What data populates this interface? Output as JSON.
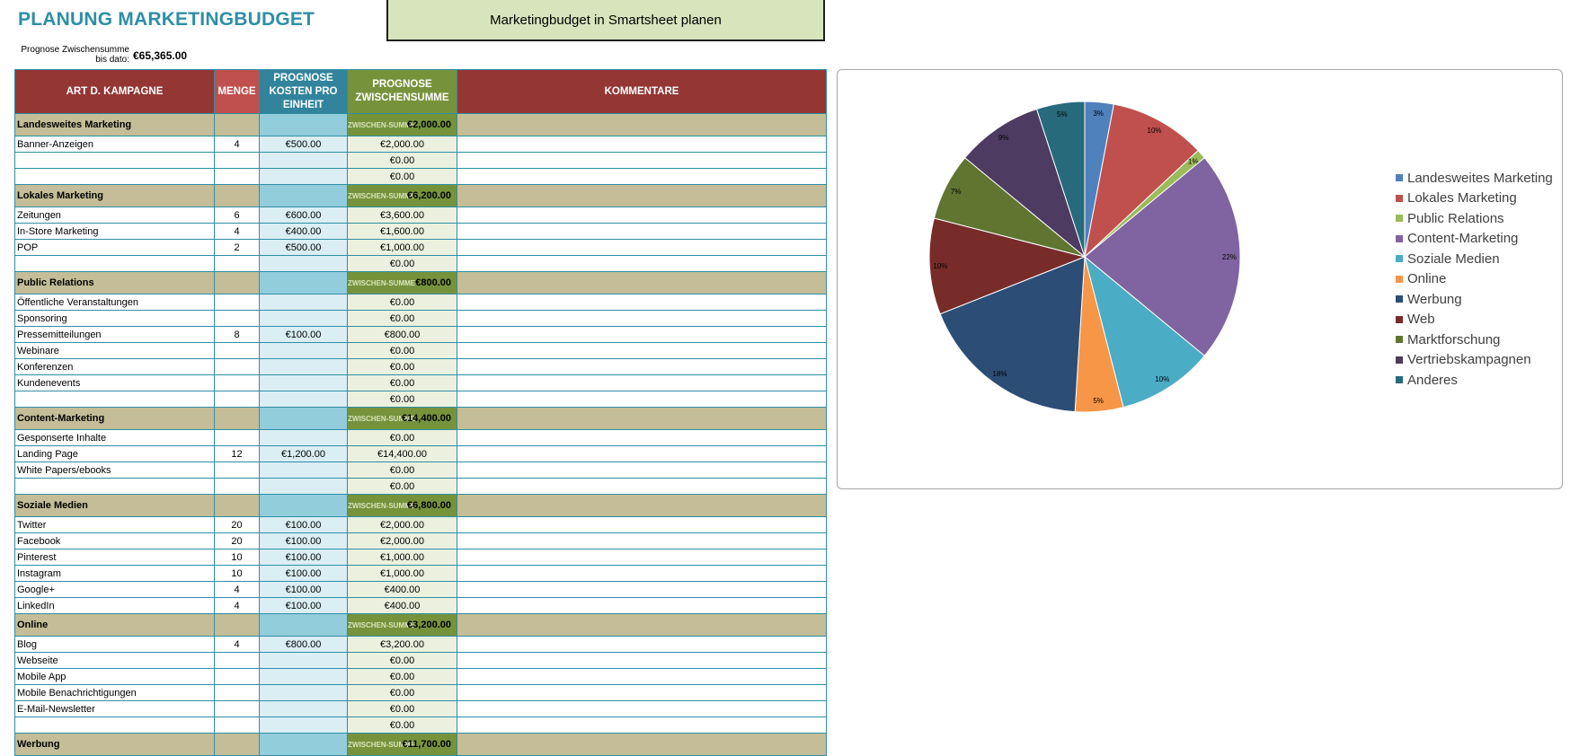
{
  "title": "PLANUNG MARKETINGBUDGET",
  "banner_label": "Marketingbudget in Smartsheet planen",
  "forecast_label": "Prognose Zwischensumme bis dato:",
  "forecast_value": "€65,365.00",
  "columns": {
    "type": "ART D. KAMPAGNE",
    "qty": "MENGE",
    "cost": "PROGNOSE KOSTEN PRO EINHEIT",
    "subtotal": "PROGNOSE ZWISCHENSUMME",
    "comments": "KOMMENTARE"
  },
  "subtotal_label": "ZWISCHEN-SUMME",
  "sections": [
    {
      "name": "Landesweites Marketing",
      "subtotal": "€2,000.00",
      "items": [
        {
          "name": "Banner-Anzeigen",
          "qty": "4",
          "cost": "€500.00",
          "subtotal": "€2,000.00"
        },
        {
          "name": "",
          "qty": "",
          "cost": "",
          "subtotal": "€0.00"
        },
        {
          "name": "",
          "qty": "",
          "cost": "",
          "subtotal": "€0.00"
        }
      ]
    },
    {
      "name": "Lokales Marketing",
      "subtotal": "€6,200.00",
      "items": [
        {
          "name": "Zeitungen",
          "qty": "6",
          "cost": "€600.00",
          "subtotal": "€3,600.00"
        },
        {
          "name": "In-Store Marketing",
          "qty": "4",
          "cost": "€400.00",
          "subtotal": "€1,600.00"
        },
        {
          "name": "POP",
          "qty": "2",
          "cost": "€500.00",
          "subtotal": "€1,000.00"
        },
        {
          "name": "",
          "qty": "",
          "cost": "",
          "subtotal": "€0.00"
        }
      ]
    },
    {
      "name": "Public Relations",
      "subtotal": "€800.00",
      "items": [
        {
          "name": "Öffentliche Veranstaltungen",
          "qty": "",
          "cost": "",
          "subtotal": "€0.00"
        },
        {
          "name": "Sponsoring",
          "qty": "",
          "cost": "",
          "subtotal": "€0.00"
        },
        {
          "name": "Pressemitteilungen",
          "qty": "8",
          "cost": "€100.00",
          "subtotal": "€800.00"
        },
        {
          "name": "Webinare",
          "qty": "",
          "cost": "",
          "subtotal": "€0.00"
        },
        {
          "name": "Konferenzen",
          "qty": "",
          "cost": "",
          "subtotal": "€0.00"
        },
        {
          "name": "Kundenevents",
          "qty": "",
          "cost": "",
          "subtotal": "€0.00"
        },
        {
          "name": "",
          "qty": "",
          "cost": "",
          "subtotal": "€0.00"
        }
      ]
    },
    {
      "name": "Content-Marketing",
      "subtotal": "€14,400.00",
      "items": [
        {
          "name": "Gesponserte Inhalte",
          "qty": "",
          "cost": "",
          "subtotal": "€0.00"
        },
        {
          "name": "Landing Page",
          "qty": "12",
          "cost": "€1,200.00",
          "subtotal": "€14,400.00"
        },
        {
          "name": "White Papers/ebooks",
          "qty": "",
          "cost": "",
          "subtotal": "€0.00"
        },
        {
          "name": "",
          "qty": "",
          "cost": "",
          "subtotal": "€0.00"
        }
      ]
    },
    {
      "name": "Soziale Medien",
      "subtotal": "€6,800.00",
      "items": [
        {
          "name": "Twitter",
          "qty": "20",
          "cost": "€100.00",
          "subtotal": "€2,000.00"
        },
        {
          "name": "Facebook",
          "qty": "20",
          "cost": "€100.00",
          "subtotal": "€2,000.00"
        },
        {
          "name": "Pinterest",
          "qty": "10",
          "cost": "€100.00",
          "subtotal": "€1,000.00"
        },
        {
          "name": "Instagram",
          "qty": "10",
          "cost": "€100.00",
          "subtotal": "€1,000.00"
        },
        {
          "name": "Google+",
          "qty": "4",
          "cost": "€100.00",
          "subtotal": "€400.00"
        },
        {
          "name": "LinkedIn",
          "qty": "4",
          "cost": "€100.00",
          "subtotal": "€400.00"
        }
      ]
    },
    {
      "name": "Online",
      "subtotal": "€3,200.00",
      "items": [
        {
          "name": "Blog",
          "qty": "4",
          "cost": "€800.00",
          "subtotal": "€3,200.00"
        },
        {
          "name": "Webseite",
          "qty": "",
          "cost": "",
          "subtotal": "€0.00"
        },
        {
          "name": "Mobile App",
          "qty": "",
          "cost": "",
          "subtotal": "€0.00"
        },
        {
          "name": "Mobile Benachrichtigungen",
          "qty": "",
          "cost": "",
          "subtotal": "€0.00"
        },
        {
          "name": "E-Mail-Newsletter",
          "qty": "",
          "cost": "",
          "subtotal": "€0.00"
        },
        {
          "name": "",
          "qty": "",
          "cost": "",
          "subtotal": "€0.00"
        }
      ]
    },
    {
      "name": "Werbung",
      "subtotal": "€11,700.00",
      "items": []
    }
  ],
  "chart_data": {
    "type": "pie",
    "categories": [
      "Landesweites Marketing",
      "Lokales Marketing",
      "Public Relations",
      "Content-Marketing",
      "Soziale Medien",
      "Online",
      "Werbung",
      "Web",
      "Marktforschung",
      "Vertriebskampagnen",
      "Anderes"
    ],
    "values": [
      3,
      10,
      1,
      22,
      10,
      5,
      18,
      10,
      7,
      9,
      5
    ],
    "labels": [
      "3%",
      "10%",
      "1%",
      "22%",
      "10%",
      "5%",
      "18%",
      "10%",
      "7%",
      "9%",
      "5%"
    ],
    "colors": [
      "#4f81bd",
      "#c0504d",
      "#9bbb59",
      "#8064a2",
      "#4bacc6",
      "#f79646",
      "#2c4d75",
      "#772c2a",
      "#5f7530",
      "#4d3b62",
      "#276a7c"
    ],
    "legend_position": "right"
  }
}
